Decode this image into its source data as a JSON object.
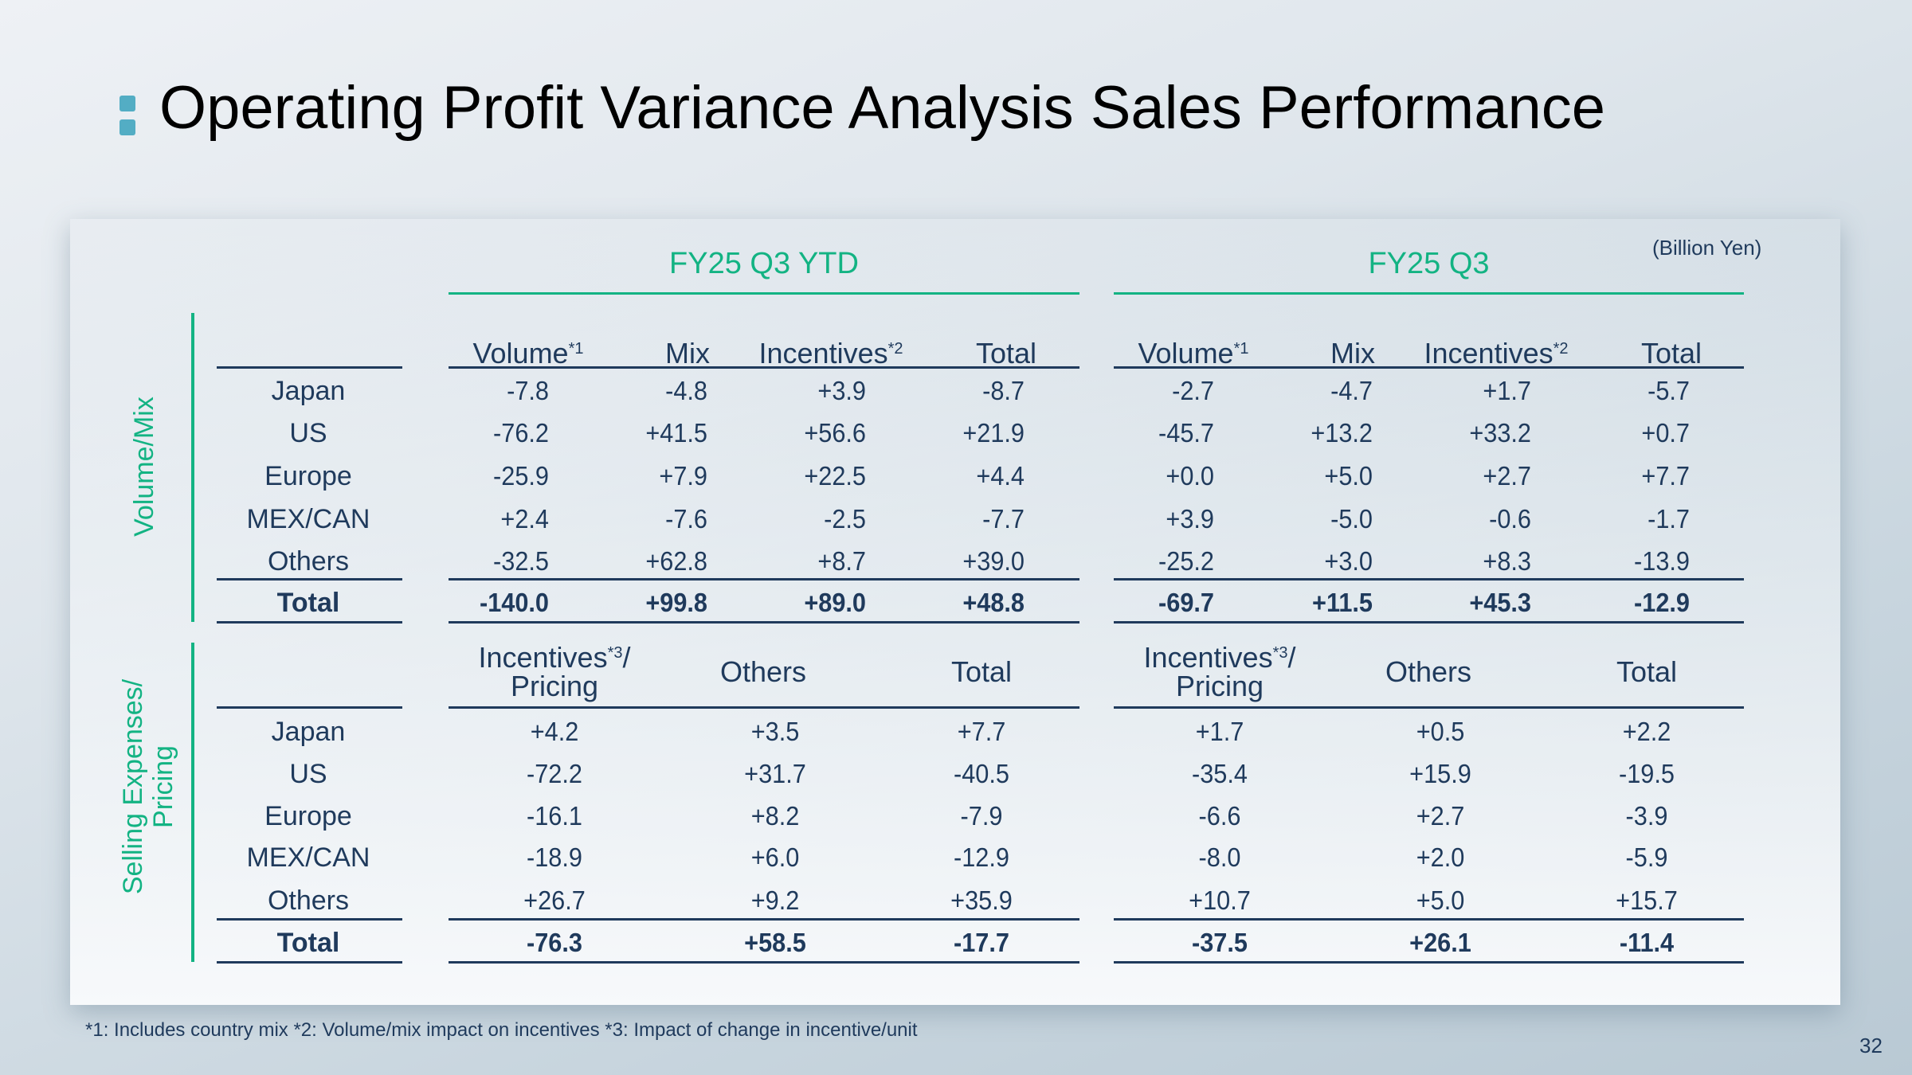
{
  "title": "Operating Profit Variance Analysis Sales Performance",
  "unit": "(Billion Yen)",
  "groups": [
    "FY25 Q3 YTD",
    "FY25 Q3"
  ],
  "sections": {
    "volume_mix": {
      "label": "Volume/Mix",
      "headers": [
        {
          "text": "Volume",
          "sup": "*1"
        },
        {
          "text": "Mix",
          "sup": ""
        },
        {
          "text": "Incentives",
          "sup": "*2"
        },
        {
          "text": "Total",
          "sup": ""
        }
      ],
      "rows": [
        "Japan",
        "US",
        "Europe",
        "MEX/CAN",
        "Others",
        "Total"
      ],
      "ytd": [
        [
          "-7.8",
          "-4.8",
          "+3.9",
          "-8.7"
        ],
        [
          "-76.2",
          "+41.5",
          "+56.6",
          "+21.9"
        ],
        [
          "-25.9",
          "+7.9",
          "+22.5",
          "+4.4"
        ],
        [
          "+2.4",
          "-7.6",
          "-2.5",
          "-7.7"
        ],
        [
          "-32.5",
          "+62.8",
          "+8.7",
          "+39.0"
        ],
        [
          "-140.0",
          "+99.8",
          "+89.0",
          "+48.8"
        ]
      ],
      "q3": [
        [
          "-2.7",
          "-4.7",
          "+1.7",
          "-5.7"
        ],
        [
          "-45.7",
          "+13.2",
          "+33.2",
          "+0.7"
        ],
        [
          "+0.0",
          "+5.0",
          "+2.7",
          "+7.7"
        ],
        [
          "+3.9",
          "-5.0",
          "-0.6",
          "-1.7"
        ],
        [
          "-25.2",
          "+3.0",
          "+8.3",
          "-13.9"
        ],
        [
          "-69.7",
          "+11.5",
          "+45.3",
          "-12.9"
        ]
      ]
    },
    "selling_expenses": {
      "label_line1": "Selling Expenses/",
      "label_line2": "Pricing",
      "headers": [
        {
          "text": "Incentives",
          "sup": "*3",
          "suffix": "/",
          "line2": "Pricing"
        },
        {
          "text": "Others",
          "sup": ""
        },
        {
          "text": "Total",
          "sup": ""
        }
      ],
      "rows": [
        "Japan",
        "US",
        "Europe",
        "MEX/CAN",
        "Others",
        "Total"
      ],
      "ytd": [
        [
          "+4.2",
          "+3.5",
          "+7.7"
        ],
        [
          "-72.2",
          "+31.7",
          "-40.5"
        ],
        [
          "-16.1",
          "+8.2",
          "-7.9"
        ],
        [
          "-18.9",
          "+6.0",
          "-12.9"
        ],
        [
          "+26.7",
          "+9.2",
          "+35.9"
        ],
        [
          "-76.3",
          "+58.5",
          "-17.7"
        ]
      ],
      "q3": [
        [
          "+1.7",
          "+0.5",
          "+2.2"
        ],
        [
          "-35.4",
          "+15.9",
          "-19.5"
        ],
        [
          "-6.6",
          "+2.7",
          "-3.9"
        ],
        [
          "-8.0",
          "+2.0",
          "-5.9"
        ],
        [
          "+10.7",
          "+5.0",
          "+15.7"
        ],
        [
          "-37.5",
          "+26.1",
          "-11.4"
        ]
      ]
    }
  },
  "footnote": "*1: Includes country mix *2: Volume/mix impact on incentives *3: Impact of change in incentive/unit",
  "page_number": "32",
  "colors": {
    "accent": "#13b383",
    "text": "#1f3a5c",
    "bullet": "#53adc4"
  }
}
